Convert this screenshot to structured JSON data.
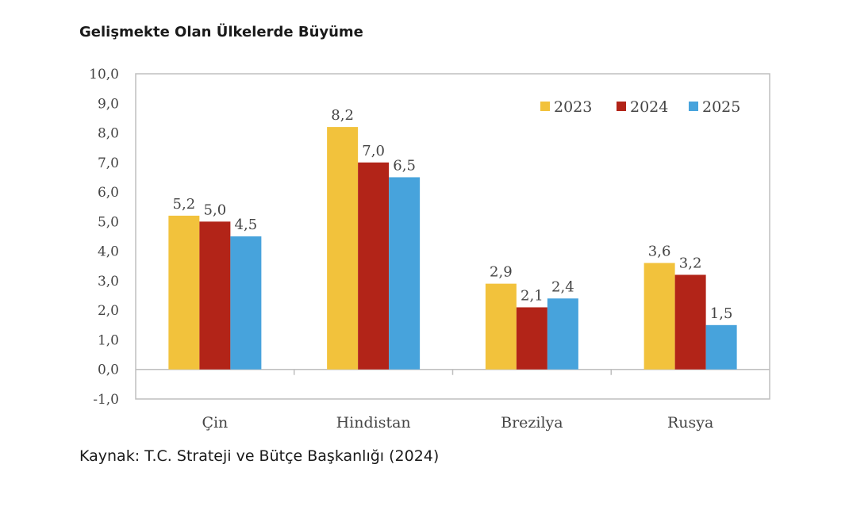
{
  "title": "Gelişmekte Olan Ülkelerde Büyüme",
  "source": "Kaynak: T.C. Strateji ve Bütçe Başkanlığı (2024)",
  "chart_data": {
    "type": "bar",
    "title": "Gelişmekte Olan Ülkelerde Büyüme",
    "xlabel": "",
    "ylabel": "%",
    "ylim": [
      -1.0,
      10.0
    ],
    "yticks": [
      "-1,0",
      "0,0",
      "1,0",
      "2,0",
      "3,0",
      "4,0",
      "5,0",
      "6,0",
      "7,0",
      "8,0",
      "9,0",
      "10,0"
    ],
    "categories": [
      "Çin",
      "Hindistan",
      "Brezilya",
      "Rusya"
    ],
    "legend_position": "top-right",
    "grid": false,
    "series": [
      {
        "name": "2023",
        "color": "#f2c23c",
        "values": [
          5.2,
          8.2,
          2.9,
          3.6
        ],
        "labels": [
          "5,2",
          "8,2",
          "2,9",
          "3,6"
        ]
      },
      {
        "name": "2024",
        "color": "#b22418",
        "values": [
          5.0,
          7.0,
          2.1,
          3.2
        ],
        "labels": [
          "5,0",
          "7,0",
          "2,1",
          "3,2"
        ]
      },
      {
        "name": "2025",
        "color": "#47a3dc",
        "values": [
          4.5,
          6.5,
          2.4,
          1.5
        ],
        "labels": [
          "4,5",
          "6,5",
          "2,4",
          "1,5"
        ]
      }
    ]
  }
}
